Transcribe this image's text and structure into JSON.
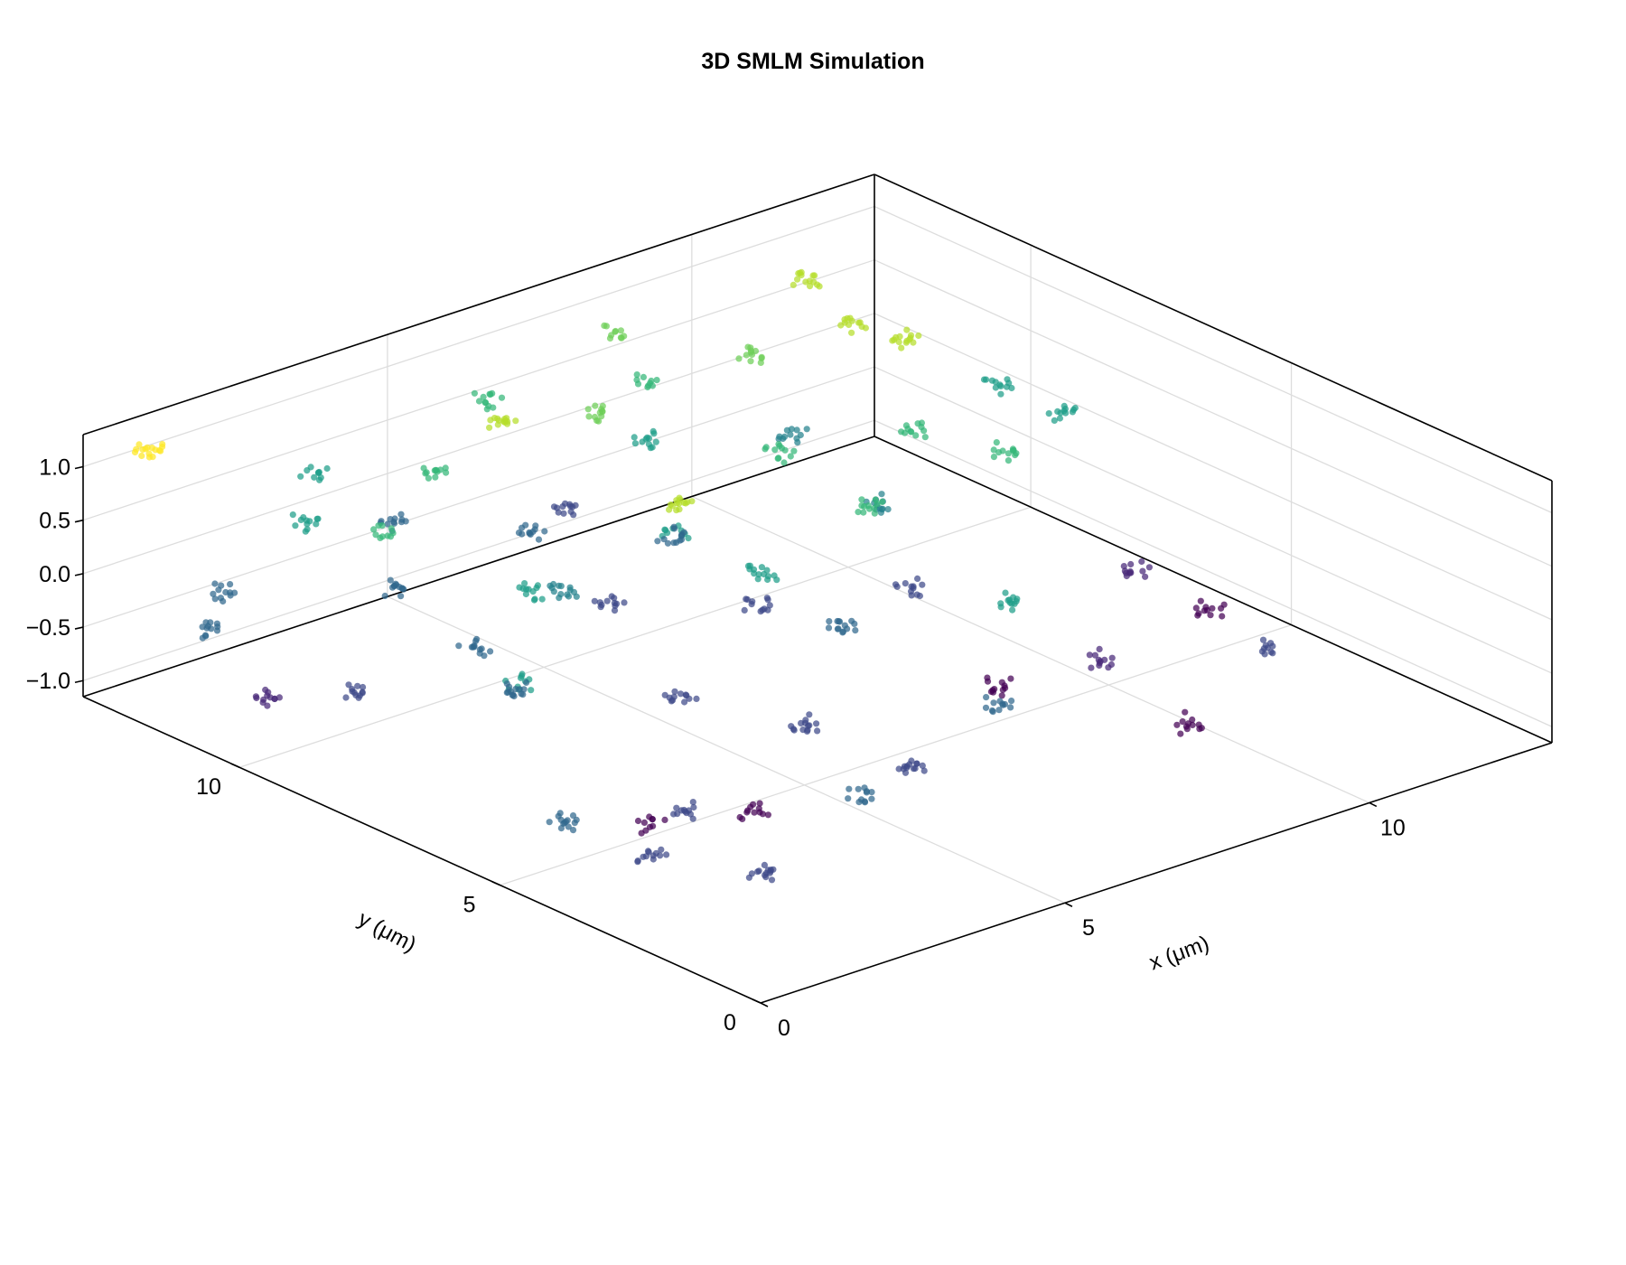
{
  "chart_data": {
    "type": "scatter",
    "projection": "3d",
    "title": "3D SMLM Simulation",
    "xlabel": "x (μm)",
    "ylabel": "y (μm)",
    "zlabel": "",
    "xlim": [
      0,
      13
    ],
    "ylim": [
      0,
      13
    ],
    "zlim": [
      -1.15,
      1.3
    ],
    "xticks": [
      "0",
      "5",
      "10"
    ],
    "xtick_values": [
      0,
      5,
      10
    ],
    "yticks": [
      "0",
      "5",
      "10"
    ],
    "ytick_values": [
      0,
      5,
      10
    ],
    "zticks": [
      "−1.0",
      "−0.5",
      "0.0",
      "0.5",
      "1.0"
    ],
    "ztick_values": [
      -1.0,
      -0.5,
      0.0,
      0.5,
      1.0
    ],
    "grid": true,
    "legend": "none",
    "colormap": "viridis",
    "color_by": "z",
    "colors": {
      "axis": "#000000",
      "grid": "#dddddd",
      "viridis": [
        "#440154",
        "#482878",
        "#3e4989",
        "#31688e",
        "#26828e",
        "#1f9e89",
        "#35b779",
        "#6ece58",
        "#b5de2b",
        "#fde725"
      ]
    },
    "clusters": [
      {
        "x": 1.4,
        "y": 1.6,
        "z": -0.52,
        "n": 14
      },
      {
        "x": 3.3,
        "y": 1.9,
        "z": -0.25,
        "n": 12
      },
      {
        "x": 0.8,
        "y": 3.0,
        "z": -0.6,
        "n": 12
      },
      {
        "x": 0.2,
        "y": 4.0,
        "z": -0.35,
        "n": 14
      },
      {
        "x": 1.8,
        "y": 3.6,
        "z": -0.48,
        "n": 12
      },
      {
        "x": 2.3,
        "y": 4.8,
        "z": -1.0,
        "n": 10
      },
      {
        "x": 3.5,
        "y": 4.2,
        "z": -0.95,
        "n": 12
      },
      {
        "x": 5.2,
        "y": 3.2,
        "z": -0.6,
        "n": 14
      },
      {
        "x": 5.0,
        "y": 5.0,
        "z": -0.6,
        "n": 14
      },
      {
        "x": 6.6,
        "y": 3.2,
        "z": -0.3,
        "n": 12
      },
      {
        "x": 6.6,
        "y": 6.1,
        "z": -0.2,
        "n": 14
      },
      {
        "x": 8.4,
        "y": 5.2,
        "z": -0.9,
        "n": 12
      },
      {
        "x": 9.4,
        "y": 4.5,
        "z": -0.7,
        "n": 12
      },
      {
        "x": 9.4,
        "y": 2.8,
        "z": -0.9,
        "n": 12
      },
      {
        "x": 11.0,
        "y": 3.2,
        "z": -0.6,
        "n": 10
      },
      {
        "x": 12.0,
        "y": 5.4,
        "z": -0.9,
        "n": 12
      },
      {
        "x": 7.6,
        "y": 4.0,
        "z": 0.3,
        "n": 12
      },
      {
        "x": 6.0,
        "y": 7.0,
        "z": 0.2,
        "n": 14
      },
      {
        "x": 8.7,
        "y": 7.3,
        "z": -0.5,
        "n": 12
      },
      {
        "x": 9.9,
        "y": 8.6,
        "z": 0.45,
        "n": 12
      },
      {
        "x": 10.6,
        "y": 9.6,
        "z": 0.95,
        "n": 14
      },
      {
        "x": 12.2,
        "y": 9.7,
        "z": 0.2,
        "n": 12
      },
      {
        "x": 11.0,
        "y": 12.0,
        "z": 0.9,
        "n": 14
      },
      {
        "x": 9.5,
        "y": 11.2,
        "z": 0.65,
        "n": 12
      },
      {
        "x": 8.3,
        "y": 11.9,
        "z": 0.5,
        "n": 10
      },
      {
        "x": 7.5,
        "y": 11.0,
        "z": 0.3,
        "n": 12
      },
      {
        "x": 7.2,
        "y": 10.1,
        "z": -0.35,
        "n": 12
      },
      {
        "x": 6.3,
        "y": 10.6,
        "z": 0.85,
        "n": 12
      },
      {
        "x": 5.4,
        "y": 9.2,
        "z": -0.45,
        "n": 12
      },
      {
        "x": 4.1,
        "y": 8.6,
        "z": 0.05,
        "n": 14
      },
      {
        "x": 3.0,
        "y": 9.0,
        "z": -0.35,
        "n": 12
      },
      {
        "x": 3.0,
        "y": 8.0,
        "z": 0.35,
        "n": 12
      },
      {
        "x": 2.0,
        "y": 7.0,
        "z": -0.15,
        "n": 14
      },
      {
        "x": 1.0,
        "y": 9.0,
        "z": -0.4,
        "n": 12
      },
      {
        "x": 0.8,
        "y": 11.5,
        "z": -0.35,
        "n": 12
      },
      {
        "x": 2.6,
        "y": 11.8,
        "z": 0.25,
        "n": 12
      },
      {
        "x": 4.5,
        "y": 12.3,
        "z": -0.2,
        "n": 12
      },
      {
        "x": 6.4,
        "y": 12.7,
        "z": 0.5,
        "n": 12
      },
      {
        "x": 0.6,
        "y": 10.2,
        "z": -0.65,
        "n": 12
      },
      {
        "x": 1.6,
        "y": 12.2,
        "z": -0.3,
        "n": 12
      },
      {
        "x": 3.0,
        "y": 10.5,
        "z": -0.15,
        "n": 12
      },
      {
        "x": 5.0,
        "y": 10.8,
        "z": 1.0,
        "n": 14
      },
      {
        "x": 7.0,
        "y": 8.2,
        "z": -0.55,
        "n": 12
      },
      {
        "x": 8.0,
        "y": 9.0,
        "z": 0.5,
        "n": 12
      },
      {
        "x": 10.5,
        "y": 7.5,
        "z": 0.4,
        "n": 12
      },
      {
        "x": 11.8,
        "y": 6.6,
        "z": -0.75,
        "n": 12
      },
      {
        "x": 7.6,
        "y": 6.8,
        "z": 0.55,
        "n": 12
      },
      {
        "x": 4.0,
        "y": 6.2,
        "z": -0.4,
        "n": 12
      },
      {
        "x": 8.8,
        "y": 8.0,
        "z": 0.1,
        "n": 12
      },
      {
        "x": 10.6,
        "y": 10.6,
        "z": 0.9,
        "n": 12
      },
      {
        "x": 12.0,
        "y": 8.2,
        "z": 0.3,
        "n": 12
      },
      {
        "x": 0.5,
        "y": 12.3,
        "z": 1.2,
        "n": 16
      },
      {
        "x": 4.7,
        "y": 7.0,
        "z": 1.1,
        "n": 14
      },
      {
        "x": 9.4,
        "y": 10.4,
        "z": 0.1,
        "n": 12
      },
      {
        "x": 7.2,
        "y": 12.1,
        "z": -0.5,
        "n": 12
      },
      {
        "x": 5.8,
        "y": 11.2,
        "z": -0.3,
        "n": 12
      },
      {
        "x": 8.4,
        "y": 12.7,
        "z": 0.75,
        "n": 10
      },
      {
        "x": 3.6,
        "y": 12.8,
        "z": 0.3,
        "n": 10
      },
      {
        "x": 6.2,
        "y": 8.9,
        "z": 0.15,
        "n": 10
      },
      {
        "x": 2.4,
        "y": 10.0,
        "z": 0.6,
        "n": 10
      },
      {
        "x": 4.2,
        "y": 11.2,
        "z": 0.55,
        "n": 12
      },
      {
        "x": 1.2,
        "y": 6.0,
        "z": 0.3,
        "n": 10
      }
    ]
  }
}
